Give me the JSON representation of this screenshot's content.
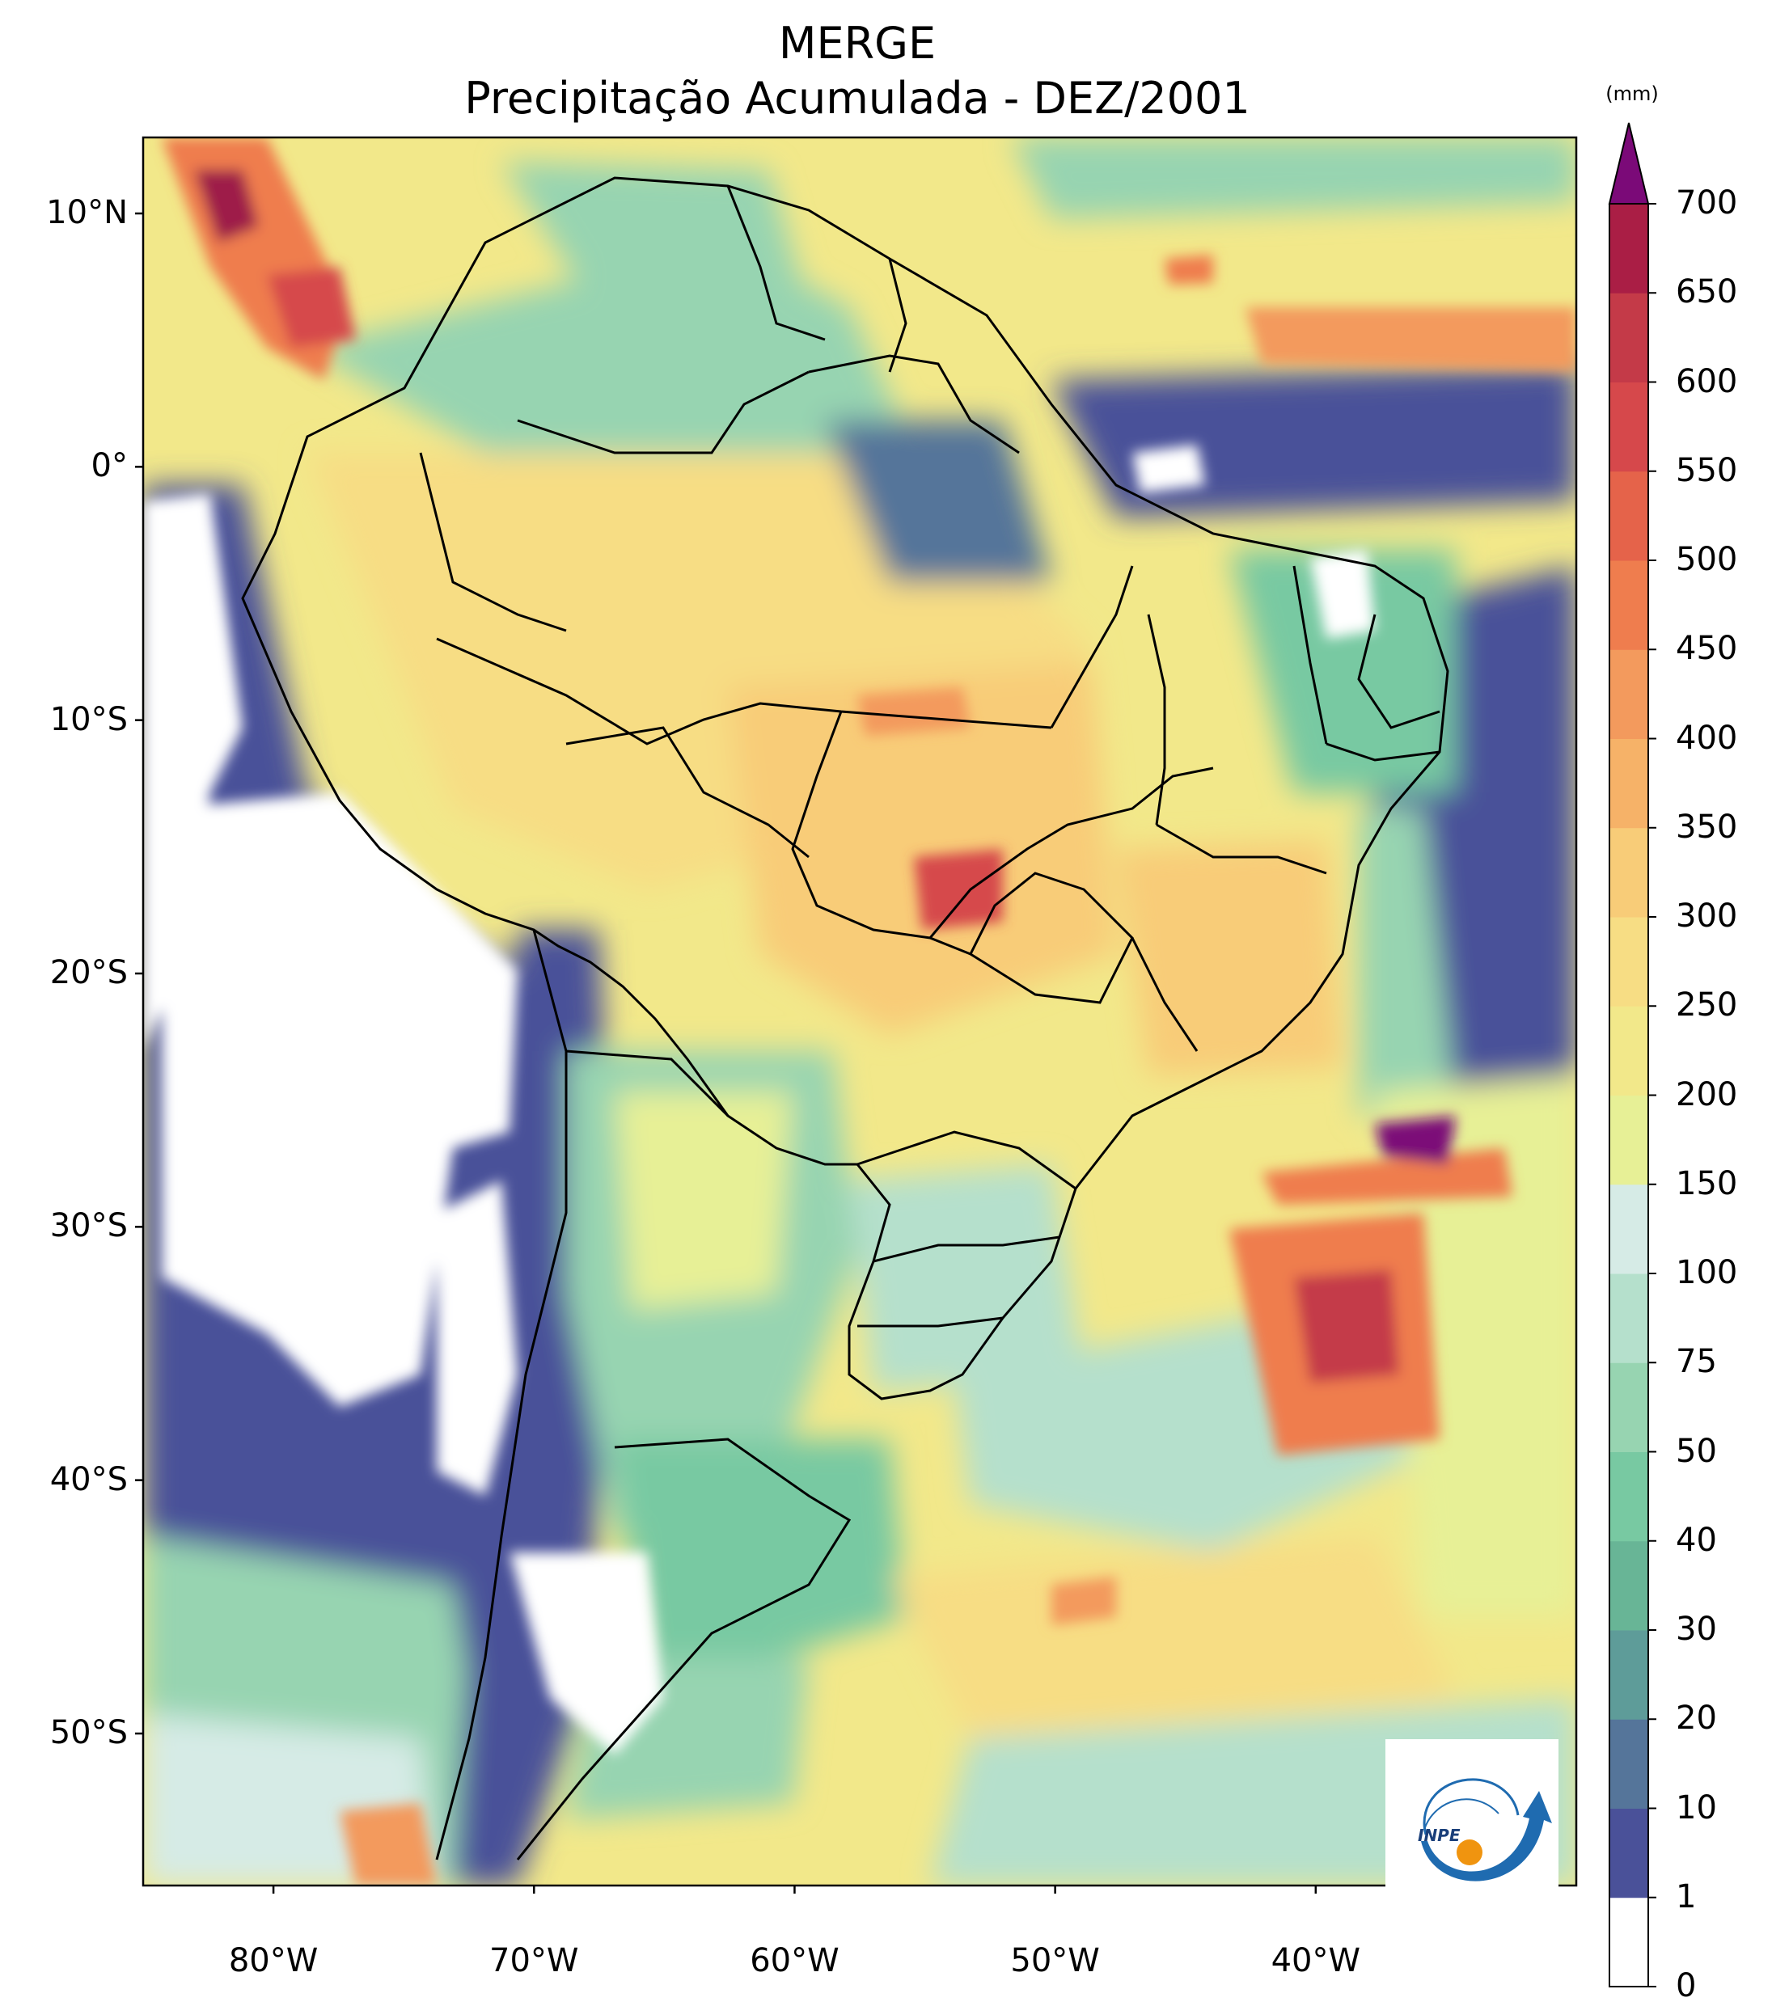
{
  "title": {
    "line1": "MERGE",
    "line2": "Precipitação Acumulada - DEZ/2001"
  },
  "map": {
    "projection": "PlateCarree",
    "extent": {
      "lon_min": -85,
      "lon_max": -30,
      "lat_min": -56,
      "lat_max": 13
    },
    "lat_ticks": [
      {
        "lat": 10,
        "label": "10°N"
      },
      {
        "lat": 0,
        "label": "0°"
      },
      {
        "lat": -10,
        "label": "10°S"
      },
      {
        "lat": -20,
        "label": "20°S"
      },
      {
        "lat": -30,
        "label": "30°S"
      },
      {
        "lat": -40,
        "label": "40°S"
      },
      {
        "lat": -50,
        "label": "50°S"
      }
    ],
    "lon_ticks": [
      {
        "lon": -80,
        "label": "80°W"
      },
      {
        "lon": -70,
        "label": "70°W"
      },
      {
        "lon": -60,
        "label": "60°W"
      },
      {
        "lon": -50,
        "label": "50°W"
      },
      {
        "lon": -40,
        "label": "40°W"
      }
    ]
  },
  "colorbar": {
    "unit": "(mm)",
    "extend": "max",
    "extend_color": "#7b0a78",
    "levels": [
      {
        "label": "0",
        "color": "#ffffff"
      },
      {
        "label": "1",
        "color": "#4a5199"
      },
      {
        "label": "10",
        "color": "#55759a"
      },
      {
        "label": "20",
        "color": "#5e9c99"
      },
      {
        "label": "30",
        "color": "#68b596"
      },
      {
        "label": "40",
        "color": "#78c9a2"
      },
      {
        "label": "50",
        "color": "#97d4b1"
      },
      {
        "label": "75",
        "color": "#b5e0cc"
      },
      {
        "label": "100",
        "color": "#d6ebe6"
      },
      {
        "label": "150",
        "color": "#e7f096"
      },
      {
        "label": "200",
        "color": "#f2e88a"
      },
      {
        "label": "250",
        "color": "#f7dd84"
      },
      {
        "label": "300",
        "color": "#f8cc78"
      },
      {
        "label": "350",
        "color": "#f6b268"
      },
      {
        "label": "400",
        "color": "#f39a5d"
      },
      {
        "label": "450",
        "color": "#ef7d4e"
      },
      {
        "label": "500",
        "color": "#e5634a"
      },
      {
        "label": "550",
        "color": "#d6484b"
      },
      {
        "label": "600",
        "color": "#c43a48"
      },
      {
        "label": "650",
        "color": "#aa1e45"
      },
      {
        "label": "700",
        "color": "#9e1a48"
      }
    ]
  },
  "logo": {
    "text": "INPE"
  }
}
